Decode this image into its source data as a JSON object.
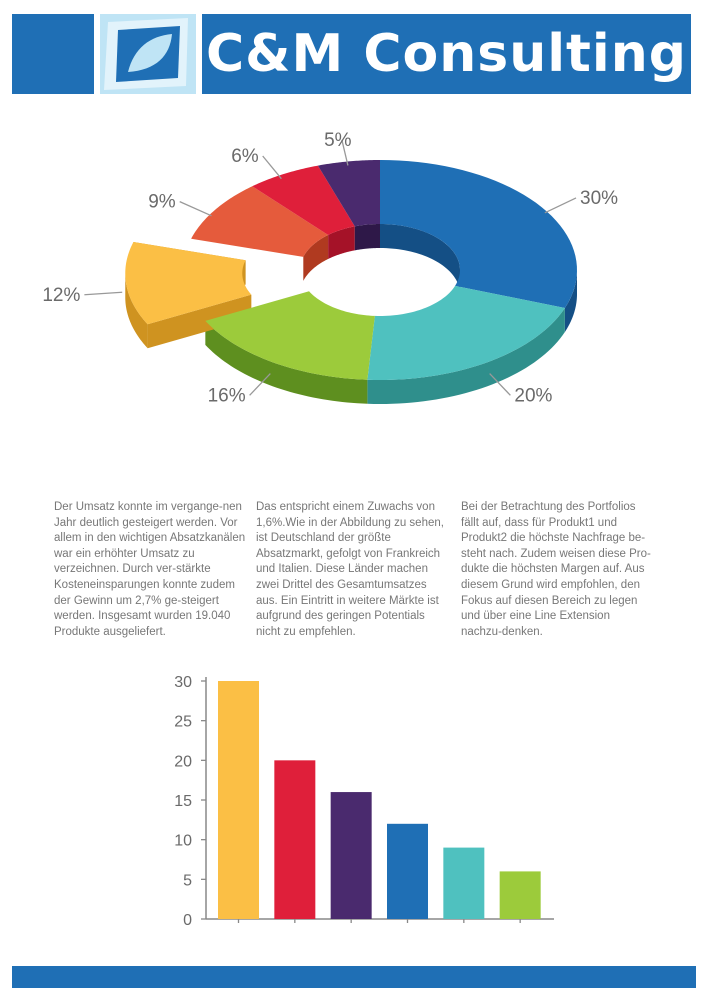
{
  "brand": {
    "name": "C&M Consulting"
  },
  "colors": {
    "header_blue": "#1f6fb5",
    "logo_bg": "#bfe4f5",
    "text_gray": "#777777"
  },
  "paragraphs": [
    "Der Umsatz konnte im vergange-nen Jahr deutlich gesteigert werden. Vor allem in den wichtigen Absatzkanälen war ein erhöhter Umsatz zu verzeichnen. Durch ver-stärkte Kosteneinsparungen konnte zudem der Gewinn um 2,7% ge-steigert werden. Insgesamt wurden 19.040 Produkte ausgeliefert.",
    "Das entspricht einem Zuwachs von 1,6%.Wie in der Abbildung zu sehen, ist Deutschland der größte Absatzmarkt, gefolgt von Frankreich und Italien. Diese Länder machen zwei Drittel des Gesamtumsatzes aus. Ein Eintritt in weitere Märkte ist aufgrund des geringen Potentials nicht zu empfehlen.",
    "Bei der Betrachtung des Portfolios fällt auf, dass für Produkt1 und Produkt2 die höchste Nachfrage be-steht nach. Zudem weisen diese Pro-dukte die höchsten Margen auf. Aus diesem Grund wird empfohlen, den Fokus auf diesen Bereich zu legen und über eine Line Extension nachzu-denken."
  ],
  "chart_data": [
    {
      "type": "pie",
      "variant": "3d-donut",
      "slices": [
        {
          "label": "30%",
          "value": 30,
          "color": "#1f6fb5",
          "side": "#144f85"
        },
        {
          "label": "20%",
          "value": 20,
          "color": "#4fc1bf",
          "side": "#2f8f8c"
        },
        {
          "label": "16%",
          "value": 16,
          "color": "#9ccb3b",
          "side": "#5e8f1f"
        },
        {
          "label": "12%",
          "value": 12,
          "color": "#fbbf45",
          "side": "#cf9320",
          "exploded": true
        },
        {
          "label": "9%",
          "value": 9,
          "color": "#e55b3c",
          "side": "#b03a20"
        },
        {
          "label": "6%",
          "value": 6,
          "color": "#df1f3a",
          "side": "#a51228"
        },
        {
          "label": "5%",
          "value": 5,
          "color": "#4a2a6e",
          "side": "#2e1848"
        }
      ]
    },
    {
      "type": "bar",
      "values": [
        30,
        20,
        16,
        12,
        9,
        6
      ],
      "colors": [
        "#fbbf45",
        "#df1f3a",
        "#4a2a6e",
        "#1f6fb5",
        "#4fc1bf",
        "#9ccb3b"
      ],
      "ylim": [
        0,
        30
      ],
      "yticks": [
        "0",
        "5",
        "10",
        "15",
        "20",
        "25",
        "30"
      ],
      "grid": false
    }
  ]
}
